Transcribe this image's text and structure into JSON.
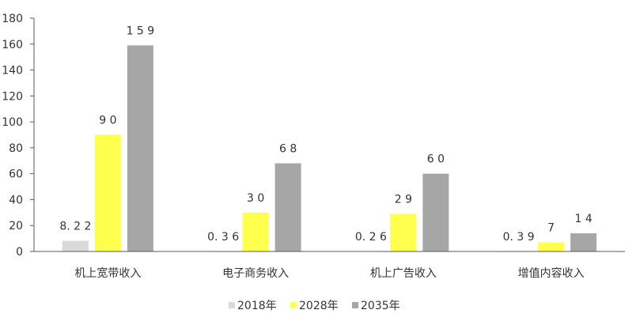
{
  "chart_data": {
    "type": "bar",
    "title": "",
    "xlabel": "",
    "ylabel": "",
    "ylim": [
      0,
      180
    ],
    "yticks": [
      0,
      20,
      40,
      60,
      80,
      100,
      120,
      140,
      160,
      180
    ],
    "grid": false,
    "legend_position": "bottom",
    "categories": [
      "机上宽带收入",
      "电子商务收入",
      "机上广告收入",
      "增值内容收入"
    ],
    "series": [
      {
        "name": "2018年",
        "color": "#d9d9d9",
        "values": [
          8.22,
          0.36,
          0.26,
          0.39
        ],
        "labels": [
          "8.22",
          "0.36",
          "0.26",
          "0.39"
        ]
      },
      {
        "name": "2028年",
        "color": "#ffff4d",
        "values": [
          90,
          30,
          29,
          7
        ],
        "labels": [
          "90",
          "30",
          "29",
          "7"
        ]
      },
      {
        "name": "2035年",
        "color": "#a6a6a6",
        "values": [
          159,
          68,
          60,
          14
        ],
        "labels": [
          "159",
          "68",
          "60",
          "14"
        ]
      }
    ]
  }
}
